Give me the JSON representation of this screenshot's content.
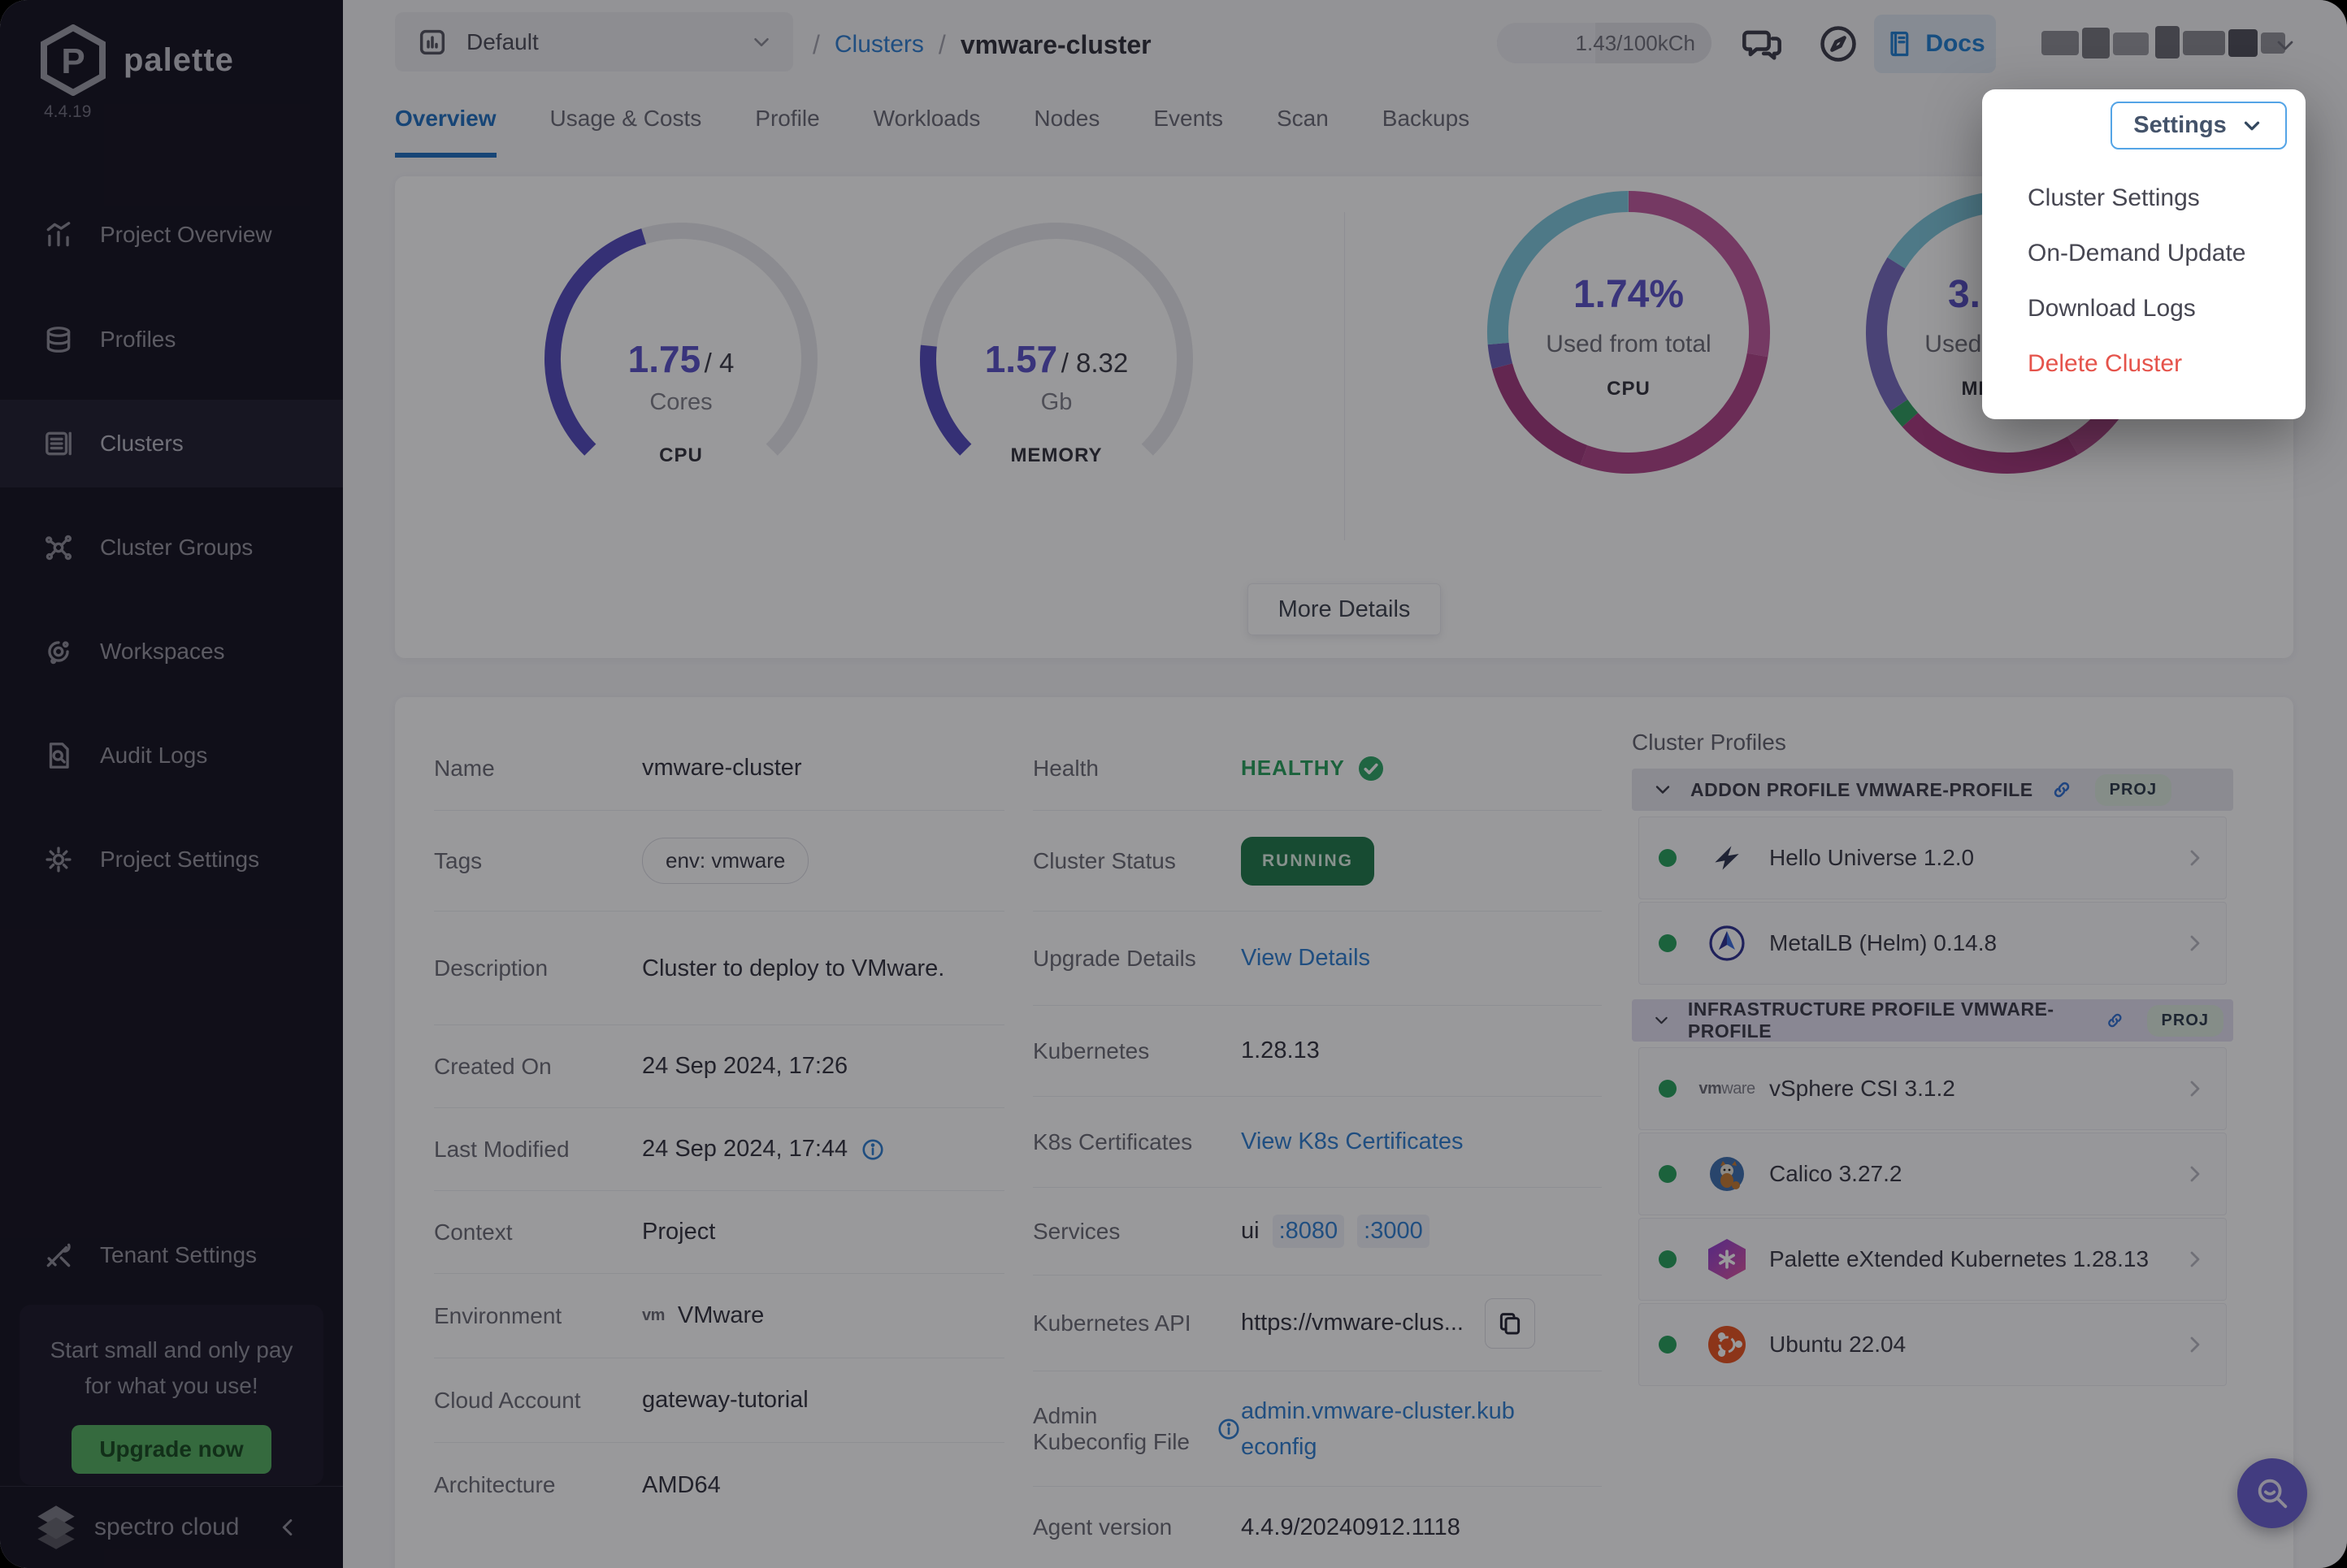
{
  "colors": {
    "accent_blue": "#2f7fd0",
    "purple": "#5b51c9",
    "magenta": "#b54b8e",
    "cyan": "#7fc8dc",
    "red": "#e5534b",
    "healthy_green": "#27a05c",
    "running_green": "#20794a",
    "upgrade_green": "#53ae5f",
    "sidebar_bg": "#14121f",
    "active_tab_blue": "#1f6fc0"
  },
  "sidebar": {
    "logo_text": "palette",
    "version": "4.4.19",
    "items": [
      {
        "label": "Project Overview"
      },
      {
        "label": "Profiles"
      },
      {
        "label": "Clusters",
        "active": true
      },
      {
        "label": "Cluster Groups"
      },
      {
        "label": "Workspaces"
      },
      {
        "label": "Audit Logs"
      },
      {
        "label": "Project Settings"
      }
    ],
    "tenant_settings_label": "Tenant Settings",
    "promo": {
      "text_line1": "Start small and only pay",
      "text_line2": "for what you use!",
      "button_label": "Upgrade now"
    },
    "footer_brand": "spectro cloud"
  },
  "topbar": {
    "project_selector": "Default",
    "breadcrumb": {
      "sep": "/",
      "link": "Clusters",
      "current": "vmware-cluster"
    },
    "usage_badge": "1.43/100kCh",
    "docs_label": "Docs"
  },
  "tabs": [
    "Overview",
    "Usage & Costs",
    "Profile",
    "Workloads",
    "Nodes",
    "Events",
    "Scan",
    "Backups"
  ],
  "settings_menu": {
    "button_label": "Settings",
    "items": [
      {
        "label": "Cluster Settings"
      },
      {
        "label": "On-Demand Update"
      },
      {
        "label": "Download Logs"
      },
      {
        "label": "Delete Cluster",
        "danger": true
      }
    ]
  },
  "chart_data": {
    "cpu_gauge": {
      "type": "gauge",
      "used": 1.75,
      "capacity": 4,
      "span": 270,
      "color": "#544bbd",
      "track": "#e7e7ec",
      "value_label": "1.75",
      "total_label": "/ 4",
      "unit": "Cores",
      "caption": "CPU"
    },
    "memory_gauge": {
      "type": "gauge",
      "used": 1.57,
      "capacity": 8.32,
      "span": 270,
      "color": "#544bbd",
      "track": "#e7e7ec",
      "value_label": "1.57",
      "total_label": "/ 8.32",
      "unit": "Gb",
      "caption": "MEMORY"
    },
    "cpu_ring": {
      "type": "ring",
      "percent": 1.74,
      "pct_label": "1.74%",
      "label": "Used from total",
      "caption": "CPU",
      "segments": [
        {
          "color": "#c25a9f",
          "from": 0,
          "to": 100
        },
        {
          "color": "#b04488",
          "from": 100,
          "to": 200
        },
        {
          "color": "#a23a7e",
          "from": 200,
          "to": 255
        },
        {
          "color": "#6a60ba",
          "from": 255,
          "to": 265
        },
        {
          "color": "#7fc8dc",
          "from": 265,
          "to": 360
        }
      ]
    },
    "memory_ring": {
      "type": "ring",
      "pct_label_visible": "3.",
      "label": "Used from total",
      "caption": "MEMORY",
      "segments": [
        {
          "color": "#b54b8e",
          "from": 0,
          "to": 150
        },
        {
          "color": "#a93a80",
          "from": 150,
          "to": 228
        },
        {
          "color": "#2f9e5f",
          "from": 228,
          "to": 236
        },
        {
          "color": "#776cc0",
          "from": 236,
          "to": 302
        },
        {
          "color": "#7fc8dc",
          "from": 302,
          "to": 360
        }
      ]
    }
  },
  "gauges_card": {
    "more_details_label": "More Details"
  },
  "details": {
    "left": [
      {
        "label": "Name",
        "value": "vmware-cluster"
      },
      {
        "label": "Tags",
        "value": "env: vmware"
      },
      {
        "label": "Description",
        "value": "Cluster to deploy to VMware."
      },
      {
        "label": "Created On",
        "value": "24 Sep 2024, 17:26"
      },
      {
        "label": "Last Modified",
        "value": "24 Sep 2024, 17:44"
      },
      {
        "label": "Context",
        "value": "Project"
      },
      {
        "label": "Environment",
        "value": "VMware",
        "vm_mark": "vm"
      },
      {
        "label": "Cloud Account",
        "value": "gateway-tutorial"
      },
      {
        "label": "Architecture",
        "value": "AMD64"
      }
    ],
    "right": [
      {
        "label": "Health",
        "value": "HEALTHY"
      },
      {
        "label": "Cluster Status",
        "value": "RUNNING"
      },
      {
        "label": "Upgrade Details",
        "value": "View Details"
      },
      {
        "label": "Kubernetes",
        "value": "1.28.13"
      },
      {
        "label": "K8s Certificates",
        "value": "View K8s Certificates"
      },
      {
        "label": "Services",
        "prefix": "ui",
        "link1": ":8080",
        "link2": ":3000"
      },
      {
        "label": "Kubernetes API",
        "value": "https://vmware-clus..."
      },
      {
        "label": "Admin Kubeconfig File",
        "value": "admin.vmware-cluster.kubeconfig"
      },
      {
        "label": "Agent version",
        "value": "4.4.9/20240912.1118"
      }
    ]
  },
  "cluster_profiles": {
    "title": "Cluster Profiles",
    "groups": [
      {
        "header": "ADDON PROFILE VMWARE-PROFILE",
        "badge": "PROJ",
        "items": [
          {
            "name": "Hello Universe 1.2.0"
          },
          {
            "name": "MetalLB (Helm) 0.14.8"
          }
        ]
      },
      {
        "header": "INFRASTRUCTURE PROFILE VMWARE-PROFILE",
        "badge": "PROJ",
        "items": [
          {
            "name": "vSphere CSI 3.1.2"
          },
          {
            "name": "Calico 3.27.2"
          },
          {
            "name": "Palette eXtended Kubernetes 1.28.13"
          },
          {
            "name": "Ubuntu 22.04"
          }
        ]
      }
    ]
  }
}
